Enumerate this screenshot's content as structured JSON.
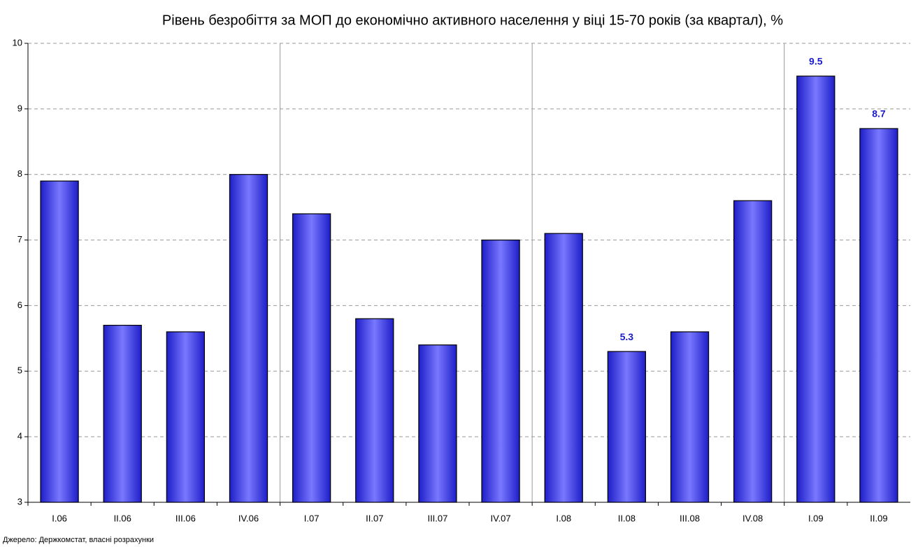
{
  "chart_data": {
    "type": "bar",
    "title": "Рівень безробіття за МОП до економічно активного населення у віці 15-70 років (за квартал), %",
    "categories": [
      "I.06",
      "II.06",
      "III.06",
      "IV.06",
      "I.07",
      "II.07",
      "III.07",
      "IV.07",
      "I.08",
      "II.08",
      "III.08",
      "IV.08",
      "I.09",
      "II.09"
    ],
    "values": [
      7.9,
      5.7,
      5.6,
      8.0,
      7.4,
      5.8,
      5.4,
      7.0,
      7.1,
      5.3,
      5.6,
      7.6,
      9.5,
      8.7
    ],
    "value_labels": [
      null,
      null,
      null,
      null,
      null,
      null,
      null,
      null,
      null,
      5.3,
      null,
      null,
      9.5,
      8.7
    ],
    "color": "#4a4aff",
    "ylim": [
      3,
      10
    ],
    "yticks": [
      3,
      4,
      5,
      6,
      7,
      8,
      9,
      10
    ],
    "grid": true,
    "source": "Джерело: Держкомстат, власні розрахунки"
  }
}
